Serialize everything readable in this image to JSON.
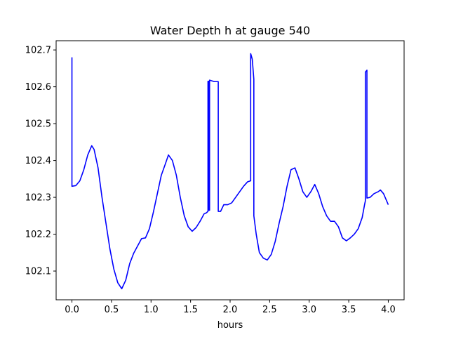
{
  "chart_data": {
    "type": "line",
    "title": "Water Depth h at gauge 540",
    "xlabel": "hours",
    "ylabel": "",
    "xlim": [
      -0.2,
      4.2
    ],
    "ylim": [
      102.022,
      102.725
    ],
    "xticks": [
      {
        "value": 0.0,
        "label": "0.0"
      },
      {
        "value": 0.5,
        "label": "0.5"
      },
      {
        "value": 1.0,
        "label": "1.0"
      },
      {
        "value": 1.5,
        "label": "1.5"
      },
      {
        "value": 2.0,
        "label": "2.0"
      },
      {
        "value": 2.5,
        "label": "2.5"
      },
      {
        "value": 3.0,
        "label": "3.0"
      },
      {
        "value": 3.5,
        "label": "3.5"
      },
      {
        "value": 4.0,
        "label": "4.0"
      }
    ],
    "yticks": [
      {
        "value": 102.1,
        "label": "102.1"
      },
      {
        "value": 102.2,
        "label": "102.2"
      },
      {
        "value": 102.3,
        "label": "102.3"
      },
      {
        "value": 102.4,
        "label": "102.4"
      },
      {
        "value": 102.5,
        "label": "102.5"
      },
      {
        "value": 102.6,
        "label": "102.6"
      },
      {
        "value": 102.7,
        "label": "102.7"
      }
    ],
    "grid": false,
    "series": [
      {
        "color": "#0000ff",
        "points": [
          [
            0.0,
            102.68
          ],
          [
            0.0,
            102.33
          ],
          [
            0.05,
            102.332
          ],
          [
            0.1,
            102.345
          ],
          [
            0.15,
            102.375
          ],
          [
            0.2,
            102.415
          ],
          [
            0.25,
            102.44
          ],
          [
            0.28,
            102.43
          ],
          [
            0.33,
            102.38
          ],
          [
            0.38,
            102.3
          ],
          [
            0.43,
            102.23
          ],
          [
            0.48,
            102.16
          ],
          [
            0.53,
            102.105
          ],
          [
            0.58,
            102.068
          ],
          [
            0.63,
            102.052
          ],
          [
            0.68,
            102.075
          ],
          [
            0.73,
            102.12
          ],
          [
            0.78,
            102.148
          ],
          [
            0.83,
            102.168
          ],
          [
            0.88,
            102.188
          ],
          [
            0.93,
            102.19
          ],
          [
            0.98,
            102.215
          ],
          [
            1.03,
            102.26
          ],
          [
            1.08,
            102.31
          ],
          [
            1.13,
            102.36
          ],
          [
            1.18,
            102.39
          ],
          [
            1.22,
            102.415
          ],
          [
            1.27,
            102.4
          ],
          [
            1.32,
            102.36
          ],
          [
            1.37,
            102.3
          ],
          [
            1.42,
            102.25
          ],
          [
            1.47,
            102.22
          ],
          [
            1.52,
            102.208
          ],
          [
            1.57,
            102.218
          ],
          [
            1.62,
            102.235
          ],
          [
            1.67,
            102.255
          ],
          [
            1.7,
            102.258
          ],
          [
            1.72,
            102.262
          ],
          [
            1.72,
            102.615
          ],
          [
            1.73,
            102.615
          ],
          [
            1.73,
            102.265
          ],
          [
            1.74,
            102.265
          ],
          [
            1.74,
            102.618
          ],
          [
            1.8,
            102.614
          ],
          [
            1.85,
            102.614
          ],
          [
            1.85,
            102.262
          ],
          [
            1.88,
            102.262
          ],
          [
            1.92,
            102.28
          ],
          [
            1.97,
            102.28
          ],
          [
            2.02,
            102.285
          ],
          [
            2.07,
            102.3
          ],
          [
            2.12,
            102.315
          ],
          [
            2.17,
            102.33
          ],
          [
            2.22,
            102.342
          ],
          [
            2.26,
            102.345
          ],
          [
            2.26,
            102.69
          ],
          [
            2.28,
            102.675
          ],
          [
            2.3,
            102.62
          ],
          [
            2.3,
            102.25
          ],
          [
            2.33,
            102.2
          ],
          [
            2.37,
            102.15
          ],
          [
            2.42,
            102.135
          ],
          [
            2.47,
            102.13
          ],
          [
            2.52,
            102.145
          ],
          [
            2.57,
            102.18
          ],
          [
            2.62,
            102.23
          ],
          [
            2.67,
            102.275
          ],
          [
            2.72,
            102.33
          ],
          [
            2.77,
            102.375
          ],
          [
            2.82,
            102.38
          ],
          [
            2.87,
            102.35
          ],
          [
            2.92,
            102.315
          ],
          [
            2.97,
            102.3
          ],
          [
            3.02,
            102.315
          ],
          [
            3.07,
            102.335
          ],
          [
            3.12,
            102.31
          ],
          [
            3.17,
            102.275
          ],
          [
            3.22,
            102.25
          ],
          [
            3.27,
            102.235
          ],
          [
            3.32,
            102.235
          ],
          [
            3.37,
            102.22
          ],
          [
            3.42,
            102.19
          ],
          [
            3.47,
            102.182
          ],
          [
            3.52,
            102.19
          ],
          [
            3.57,
            102.2
          ],
          [
            3.62,
            102.215
          ],
          [
            3.67,
            102.245
          ],
          [
            3.7,
            102.28
          ],
          [
            3.71,
            102.29
          ],
          [
            3.71,
            102.64
          ],
          [
            3.73,
            102.645
          ],
          [
            3.73,
            102.298
          ],
          [
            3.77,
            102.3
          ],
          [
            3.82,
            102.31
          ],
          [
            3.87,
            102.315
          ],
          [
            3.9,
            102.32
          ],
          [
            3.94,
            102.31
          ],
          [
            4.0,
            102.28
          ]
        ]
      }
    ]
  }
}
